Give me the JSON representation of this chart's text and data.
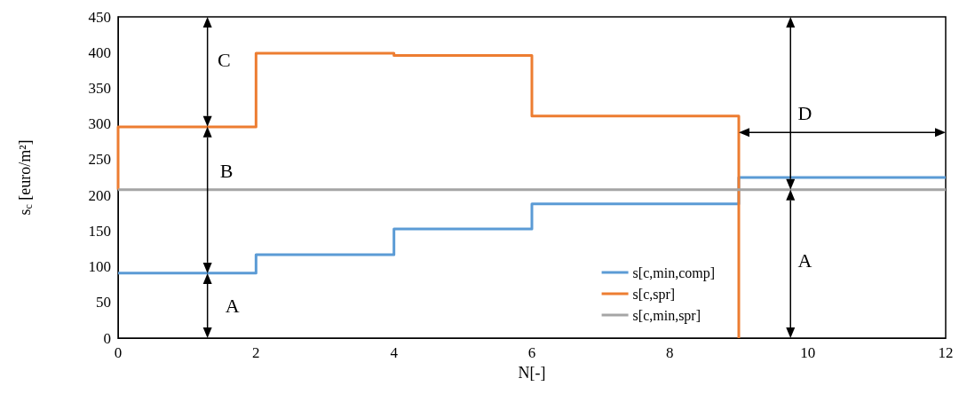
{
  "chart_data": {
    "type": "step",
    "xlabel": "N[-]",
    "ylabel": "s$_{c}$ [euro/m²]",
    "series": [
      {
        "name": "s[c,min,comp]",
        "color": "#5b9bd5",
        "x": [
          0,
          2,
          4,
          6,
          9,
          12
        ],
        "values": [
          91,
          117,
          153,
          188,
          225,
          225
        ]
      },
      {
        "name": "s[c,spr]",
        "color": "#ed7d31",
        "x": [
          0,
          0,
          2,
          4,
          6,
          9,
          9
        ],
        "values": [
          208,
          296,
          399,
          396,
          311,
          311,
          0
        ]
      },
      {
        "name": "s[c,min,spr]",
        "color": "#a5a5a5",
        "x": [
          0,
          12
        ],
        "values": [
          208,
          208
        ]
      }
    ],
    "xlim": [
      0,
      12
    ],
    "xticks": [
      0,
      2,
      4,
      6,
      8,
      10,
      12
    ],
    "ylim": [
      0,
      450
    ],
    "yticks": [
      0,
      50,
      100,
      150,
      200,
      250,
      300,
      350,
      400,
      450
    ],
    "grid": false,
    "legend": "bottom right",
    "marker": "none",
    "line_style": "solid",
    "annotations": [
      "A",
      "B",
      "C",
      "D",
      "A"
    ]
  }
}
